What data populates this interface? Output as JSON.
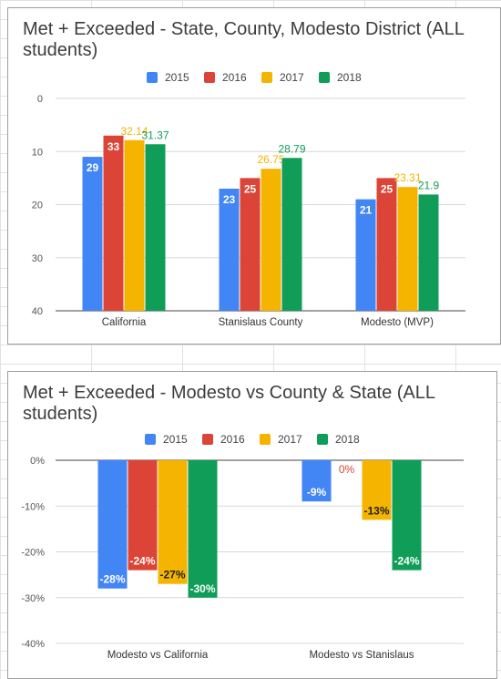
{
  "colors": {
    "2015": "#4285f4",
    "2016": "#db4437",
    "2017": "#f4b400",
    "2018": "#0f9d58"
  },
  "chart_data": [
    {
      "type": "bar",
      "title": "Met + Exceeded - State, County, Modesto District (ALL students)",
      "categories": [
        "California",
        "Stanislaus County",
        "Modesto (MVP)"
      ],
      "series": [
        {
          "name": "2015",
          "values": [
            29,
            23,
            21
          ],
          "labels": [
            "29",
            "23",
            "21"
          ]
        },
        {
          "name": "2016",
          "values": [
            33,
            25,
            25
          ],
          "labels": [
            "33",
            "25",
            "25"
          ]
        },
        {
          "name": "2017",
          "values": [
            32.14,
            26.75,
            23.31
          ],
          "labels": [
            "32.14",
            "26.75",
            "23.31"
          ]
        },
        {
          "name": "2018",
          "values": [
            31.37,
            28.79,
            21.9
          ],
          "labels": [
            "31.37",
            "28.79",
            "21.9"
          ]
        }
      ],
      "y_ticks": [
        "0",
        "10",
        "20",
        "30",
        "40"
      ],
      "ylim": [
        0,
        40
      ],
      "legend": "top",
      "grid": true
    },
    {
      "type": "bar",
      "title": "Met + Exceeded - Modesto vs County & State (ALL students)",
      "categories": [
        "Modesto vs California",
        "Modesto vs Stanislaus"
      ],
      "series": [
        {
          "name": "2015",
          "values": [
            -28,
            -9
          ],
          "labels": [
            "-28%",
            "-9%"
          ]
        },
        {
          "name": "2016",
          "values": [
            -24,
            0
          ],
          "labels": [
            "-24%",
            "0%"
          ]
        },
        {
          "name": "2017",
          "values": [
            -27,
            -13
          ],
          "labels": [
            "-27%",
            "-13%"
          ]
        },
        {
          "name": "2018",
          "values": [
            -30,
            -24
          ],
          "labels": [
            "-30%",
            "-24%"
          ]
        }
      ],
      "y_ticks": [
        "0%",
        "-10%",
        "-20%",
        "-30%",
        "-40%"
      ],
      "ylim": [
        -40,
        0
      ],
      "legend": "top",
      "grid": true
    }
  ]
}
